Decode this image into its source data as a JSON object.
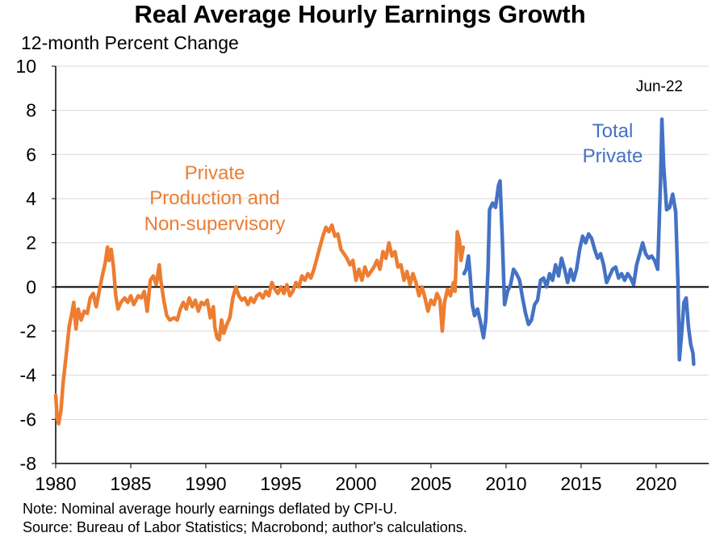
{
  "chart_data": {
    "type": "line",
    "title": "Real Average Hourly Earnings Growth",
    "subtitle": "12-month Percent Change",
    "ylim": [
      -8,
      10
    ],
    "yticks": [
      -8,
      -6,
      -4,
      -2,
      0,
      2,
      4,
      6,
      8,
      10
    ],
    "xlim": [
      1980,
      2023.5
    ],
    "xticks": [
      1980,
      1985,
      1990,
      1995,
      2000,
      2005,
      2010,
      2015,
      2020
    ],
    "grid": true,
    "annotation": "Jun-22",
    "notes": [
      "Note: Nominal average hourly earnings deflated by CPI-U.",
      "Source: Bureau of Labor Statistics; Macrobond; author's calculations."
    ],
    "series": [
      {
        "name": "Private Production and Non-supervisory",
        "label_lines": [
          "Private",
          "Production and",
          "Non-supervisory"
        ],
        "color": "#ED7D31",
        "points": [
          [
            1980.0,
            -4.9
          ],
          [
            1980.1,
            -6.0
          ],
          [
            1980.2,
            -6.2
          ],
          [
            1980.35,
            -5.6
          ],
          [
            1980.5,
            -4.3
          ],
          [
            1980.7,
            -3.1
          ],
          [
            1980.9,
            -1.8
          ],
          [
            1981.1,
            -1.1
          ],
          [
            1981.2,
            -0.7
          ],
          [
            1981.35,
            -1.9
          ],
          [
            1981.5,
            -1.0
          ],
          [
            1981.7,
            -1.5
          ],
          [
            1981.9,
            -1.1
          ],
          [
            1982.1,
            -1.2
          ],
          [
            1982.3,
            -0.5
          ],
          [
            1982.5,
            -0.3
          ],
          [
            1982.7,
            -0.9
          ],
          [
            1982.9,
            -0.2
          ],
          [
            1983.1,
            0.5
          ],
          [
            1983.3,
            1.1
          ],
          [
            1983.45,
            1.8
          ],
          [
            1983.55,
            1.2
          ],
          [
            1983.7,
            1.7
          ],
          [
            1983.85,
            0.9
          ],
          [
            1984.0,
            -0.4
          ],
          [
            1984.15,
            -1.0
          ],
          [
            1984.35,
            -0.7
          ],
          [
            1984.6,
            -0.5
          ],
          [
            1984.8,
            -0.7
          ],
          [
            1985.0,
            -0.4
          ],
          [
            1985.2,
            -0.8
          ],
          [
            1985.5,
            -0.4
          ],
          [
            1985.7,
            -0.5
          ],
          [
            1985.9,
            -0.2
          ],
          [
            1986.1,
            -1.1
          ],
          [
            1986.3,
            0.3
          ],
          [
            1986.5,
            0.5
          ],
          [
            1986.7,
            0.1
          ],
          [
            1986.9,
            1.0
          ],
          [
            1987.0,
            0.3
          ],
          [
            1987.2,
            -0.6
          ],
          [
            1987.4,
            -1.3
          ],
          [
            1987.6,
            -1.5
          ],
          [
            1987.9,
            -1.4
          ],
          [
            1988.1,
            -1.5
          ],
          [
            1988.3,
            -1.0
          ],
          [
            1988.5,
            -0.7
          ],
          [
            1988.7,
            -1.0
          ],
          [
            1988.9,
            -0.5
          ],
          [
            1989.1,
            -0.9
          ],
          [
            1989.3,
            -0.6
          ],
          [
            1989.5,
            -1.1
          ],
          [
            1989.7,
            -0.7
          ],
          [
            1989.9,
            -0.8
          ],
          [
            1990.1,
            -0.6
          ],
          [
            1990.3,
            -1.4
          ],
          [
            1990.5,
            -0.9
          ],
          [
            1990.6,
            -1.8
          ],
          [
            1990.75,
            -2.3
          ],
          [
            1990.9,
            -2.4
          ],
          [
            1991.05,
            -1.5
          ],
          [
            1991.2,
            -2.1
          ],
          [
            1991.4,
            -1.7
          ],
          [
            1991.6,
            -1.4
          ],
          [
            1991.8,
            -0.5
          ],
          [
            1992.0,
            0.0
          ],
          [
            1992.2,
            -0.4
          ],
          [
            1992.4,
            -0.6
          ],
          [
            1992.6,
            -0.5
          ],
          [
            1992.8,
            -0.8
          ],
          [
            1993.0,
            -0.5
          ],
          [
            1993.2,
            -0.7
          ],
          [
            1993.4,
            -0.4
          ],
          [
            1993.6,
            -0.3
          ],
          [
            1993.8,
            -0.5
          ],
          [
            1994.0,
            -0.2
          ],
          [
            1994.2,
            -0.4
          ],
          [
            1994.4,
            0.2
          ],
          [
            1994.6,
            -0.1
          ],
          [
            1994.8,
            -0.3
          ],
          [
            1995.0,
            0.0
          ],
          [
            1995.2,
            -0.3
          ],
          [
            1995.4,
            0.1
          ],
          [
            1995.6,
            -0.4
          ],
          [
            1995.8,
            -0.2
          ],
          [
            1996.0,
            0.2
          ],
          [
            1996.2,
            0.0
          ],
          [
            1996.4,
            0.5
          ],
          [
            1996.6,
            0.3
          ],
          [
            1996.8,
            0.6
          ],
          [
            1997.0,
            0.4
          ],
          [
            1997.2,
            0.8
          ],
          [
            1997.4,
            1.3
          ],
          [
            1997.6,
            1.8
          ],
          [
            1997.8,
            2.3
          ],
          [
            1998.0,
            2.7
          ],
          [
            1998.2,
            2.5
          ],
          [
            1998.4,
            2.8
          ],
          [
            1998.6,
            2.3
          ],
          [
            1998.8,
            2.4
          ],
          [
            1999.0,
            1.7
          ],
          [
            1999.2,
            1.5
          ],
          [
            1999.4,
            1.3
          ],
          [
            1999.6,
            1.0
          ],
          [
            1999.8,
            1.2
          ],
          [
            2000.0,
            0.3
          ],
          [
            2000.2,
            0.8
          ],
          [
            2000.4,
            0.3
          ],
          [
            2000.6,
            0.9
          ],
          [
            2000.8,
            0.5
          ],
          [
            2001.0,
            0.7
          ],
          [
            2001.2,
            0.9
          ],
          [
            2001.4,
            1.2
          ],
          [
            2001.6,
            0.8
          ],
          [
            2001.8,
            1.6
          ],
          [
            2002.0,
            1.3
          ],
          [
            2002.2,
            2.0
          ],
          [
            2002.4,
            1.4
          ],
          [
            2002.6,
            1.6
          ],
          [
            2002.8,
            0.9
          ],
          [
            2003.0,
            1.0
          ],
          [
            2003.2,
            0.3
          ],
          [
            2003.4,
            0.7
          ],
          [
            2003.6,
            0.1
          ],
          [
            2003.8,
            0.6
          ],
          [
            2004.0,
            0.2
          ],
          [
            2004.2,
            -0.4
          ],
          [
            2004.4,
            0.0
          ],
          [
            2004.6,
            -0.5
          ],
          [
            2004.8,
            -1.1
          ],
          [
            2005.0,
            -0.6
          ],
          [
            2005.2,
            -0.8
          ],
          [
            2005.4,
            -0.3
          ],
          [
            2005.6,
            -0.6
          ],
          [
            2005.75,
            -2.0
          ],
          [
            2005.9,
            -0.7
          ],
          [
            2006.1,
            -0.1
          ],
          [
            2006.3,
            -0.4
          ],
          [
            2006.5,
            0.2
          ],
          [
            2006.6,
            -0.2
          ],
          [
            2006.75,
            2.5
          ],
          [
            2006.9,
            2.1
          ],
          [
            2007.0,
            1.2
          ],
          [
            2007.15,
            1.8
          ]
        ]
      },
      {
        "name": "Total Private",
        "label_lines": [
          "Total",
          "Private"
        ],
        "color": "#4472C4",
        "points": [
          [
            2007.2,
            0.6
          ],
          [
            2007.35,
            0.8
          ],
          [
            2007.5,
            1.4
          ],
          [
            2007.6,
            0.6
          ],
          [
            2007.75,
            -0.8
          ],
          [
            2007.9,
            -1.3
          ],
          [
            2008.1,
            -1.0
          ],
          [
            2008.3,
            -1.6
          ],
          [
            2008.5,
            -2.3
          ],
          [
            2008.65,
            -1.5
          ],
          [
            2008.8,
            0.8
          ],
          [
            2008.9,
            3.5
          ],
          [
            2009.1,
            3.8
          ],
          [
            2009.3,
            3.6
          ],
          [
            2009.5,
            4.6
          ],
          [
            2009.6,
            4.8
          ],
          [
            2009.75,
            2.2
          ],
          [
            2009.9,
            -0.8
          ],
          [
            2010.1,
            -0.2
          ],
          [
            2010.3,
            0.1
          ],
          [
            2010.5,
            0.8
          ],
          [
            2010.7,
            0.6
          ],
          [
            2010.9,
            0.3
          ],
          [
            2011.1,
            -0.5
          ],
          [
            2011.3,
            -1.2
          ],
          [
            2011.5,
            -1.7
          ],
          [
            2011.7,
            -1.5
          ],
          [
            2011.9,
            -0.8
          ],
          [
            2012.1,
            -0.6
          ],
          [
            2012.3,
            0.3
          ],
          [
            2012.5,
            0.4
          ],
          [
            2012.7,
            0.0
          ],
          [
            2012.9,
            0.6
          ],
          [
            2013.1,
            0.3
          ],
          [
            2013.3,
            1.0
          ],
          [
            2013.5,
            0.5
          ],
          [
            2013.7,
            1.3
          ],
          [
            2013.9,
            0.8
          ],
          [
            2014.1,
            0.2
          ],
          [
            2014.3,
            0.8
          ],
          [
            2014.5,
            0.3
          ],
          [
            2014.7,
            0.8
          ],
          [
            2014.9,
            1.7
          ],
          [
            2015.1,
            2.3
          ],
          [
            2015.3,
            2.0
          ],
          [
            2015.5,
            2.4
          ],
          [
            2015.7,
            2.2
          ],
          [
            2015.9,
            1.7
          ],
          [
            2016.1,
            1.3
          ],
          [
            2016.3,
            1.5
          ],
          [
            2016.5,
            1.0
          ],
          [
            2016.7,
            0.2
          ],
          [
            2016.9,
            0.5
          ],
          [
            2017.1,
            0.8
          ],
          [
            2017.3,
            0.9
          ],
          [
            2017.5,
            0.4
          ],
          [
            2017.7,
            0.6
          ],
          [
            2017.9,
            0.3
          ],
          [
            2018.1,
            0.6
          ],
          [
            2018.3,
            0.4
          ],
          [
            2018.5,
            0.1
          ],
          [
            2018.7,
            1.0
          ],
          [
            2018.9,
            1.5
          ],
          [
            2019.1,
            2.0
          ],
          [
            2019.3,
            1.5
          ],
          [
            2019.5,
            1.3
          ],
          [
            2019.7,
            1.4
          ],
          [
            2019.9,
            1.2
          ],
          [
            2020.1,
            0.8
          ],
          [
            2020.3,
            5.0
          ],
          [
            2020.38,
            7.6
          ],
          [
            2020.5,
            5.5
          ],
          [
            2020.7,
            3.5
          ],
          [
            2020.9,
            3.6
          ],
          [
            2021.1,
            4.2
          ],
          [
            2021.3,
            3.4
          ],
          [
            2021.45,
            0.2
          ],
          [
            2021.55,
            -3.3
          ],
          [
            2021.7,
            -2.1
          ],
          [
            2021.85,
            -0.7
          ],
          [
            2022.0,
            -0.5
          ],
          [
            2022.15,
            -1.8
          ],
          [
            2022.3,
            -2.6
          ],
          [
            2022.45,
            -3.0
          ],
          [
            2022.5,
            -3.5
          ]
        ]
      }
    ]
  }
}
